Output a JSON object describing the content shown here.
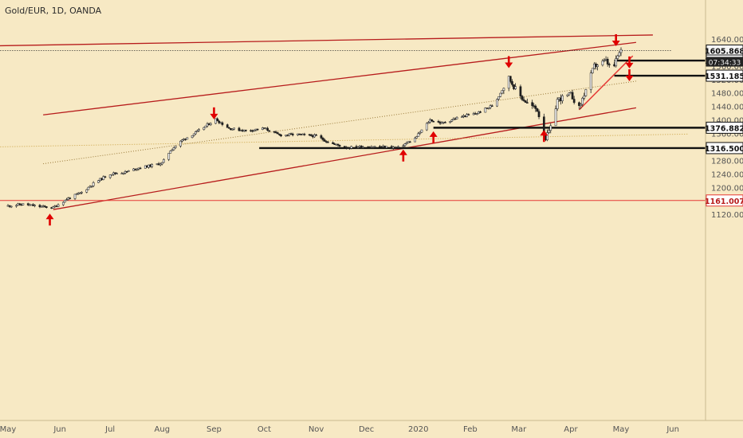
{
  "header": {
    "title": "Gold/EUR, 1D, OANDA"
  },
  "chart_data": {
    "type": "candlestick",
    "title": "Gold/EUR, 1D, OANDA",
    "symbol": "Gold/EUR",
    "interval": "1D",
    "source": "OANDA",
    "xlabels": [
      "May",
      "Jun",
      "Jul",
      "Aug",
      "Sep",
      "Oct",
      "Nov",
      "Dec",
      "2020",
      "Feb",
      "Mar",
      "Apr",
      "May",
      "Jun"
    ],
    "yticks": [
      1120,
      1160,
      1200,
      1240,
      1280,
      1320,
      1360,
      1400,
      1440,
      1480,
      1520,
      1560,
      1600,
      1640
    ],
    "ytick_labels": [
      "1120.000",
      "1160.000",
      "1200.000",
      "1240.000",
      "1280.000",
      "1320.000",
      "1360.000",
      "1400.000",
      "1440.000",
      "1480.000",
      "1520.000",
      "1560.000",
      "1600.000",
      "1640.000"
    ],
    "ylim": [
      1100,
      1660
    ],
    "current_price": "1605.868",
    "countdown": "07:34:33",
    "price_labels": [
      {
        "value": 1605.868,
        "label": "1605.868",
        "style": "current"
      },
      {
        "value": 1576.086,
        "label": "1576.086",
        "style": "level"
      },
      {
        "value": 1531.185,
        "label": "1531.185",
        "style": "level"
      },
      {
        "value": 1376.882,
        "label": "1376.882",
        "style": "level"
      },
      {
        "value": 1316.5,
        "label": "1316.500",
        "style": "level"
      },
      {
        "value": 1161.007,
        "label": "1161.007",
        "style": "red"
      }
    ],
    "path": [
      [
        "2019-05-01",
        1145
      ],
      [
        "2019-05-10",
        1150
      ],
      [
        "2019-05-20",
        1143
      ],
      [
        "2019-05-28",
        1140
      ],
      [
        "2019-06-05",
        1165
      ],
      [
        "2019-06-14",
        1185
      ],
      [
        "2019-06-22",
        1215
      ],
      [
        "2019-07-01",
        1240
      ],
      [
        "2019-07-10",
        1245
      ],
      [
        "2019-07-18",
        1258
      ],
      [
        "2019-07-26",
        1265
      ],
      [
        "2019-08-01",
        1272
      ],
      [
        "2019-08-06",
        1310
      ],
      [
        "2019-08-13",
        1340
      ],
      [
        "2019-08-22",
        1365
      ],
      [
        "2019-09-02",
        1402
      ],
      [
        "2019-09-10",
        1375
      ],
      [
        "2019-09-20",
        1368
      ],
      [
        "2019-10-01",
        1375
      ],
      [
        "2019-10-10",
        1355
      ],
      [
        "2019-10-20",
        1357
      ],
      [
        "2019-11-01",
        1352
      ],
      [
        "2019-11-10",
        1330
      ],
      [
        "2019-11-20",
        1318
      ],
      [
        "2019-12-01",
        1322
      ],
      [
        "2019-12-10",
        1320
      ],
      [
        "2019-12-20",
        1318
      ],
      [
        "2019-12-30",
        1345
      ],
      [
        "2020-01-08",
        1400
      ],
      [
        "2020-01-15",
        1390
      ],
      [
        "2020-01-25",
        1408
      ],
      [
        "2020-02-05",
        1420
      ],
      [
        "2020-02-15",
        1445
      ],
      [
        "2020-02-24",
        1525
      ],
      [
        "2020-03-01",
        1475
      ],
      [
        "2020-03-06",
        1450
      ],
      [
        "2020-03-12",
        1430
      ],
      [
        "2020-03-17",
        1345
      ],
      [
        "2020-03-20",
        1375
      ],
      [
        "2020-03-24",
        1460
      ],
      [
        "2020-04-01",
        1475
      ],
      [
        "2020-04-06",
        1435
      ],
      [
        "2020-04-10",
        1490
      ],
      [
        "2020-04-15",
        1560
      ],
      [
        "2020-04-22",
        1575
      ],
      [
        "2020-04-26",
        1545
      ],
      [
        "2020-04-29",
        1590
      ],
      [
        "2020-05-01",
        1605
      ]
    ],
    "annotations": {
      "channel_upper": [
        [
          "2019-05-22",
          1415
        ],
        [
          "2020-05-10",
          1630
        ]
      ],
      "channel_lower": [
        [
          "2019-05-28",
          1134
        ],
        [
          "2020-05-10",
          1436
        ]
      ],
      "channel_mid": [
        [
          "2019-05-22",
          1270
        ],
        [
          "2020-05-10",
          1515
        ]
      ],
      "top_trendline": [
        [
          "2019-04-25",
          1620
        ],
        [
          "2020-05-20",
          1652
        ]
      ],
      "lower_dotted": [
        [
          "2019-04-25",
          1320
        ],
        [
          "2020-06-10",
          1358
        ]
      ],
      "steep_trendline": [
        [
          "2020-04-06",
          1430
        ],
        [
          "2020-05-08",
          1590
        ]
      ],
      "level_lines": [
        {
          "value": 1605.868,
          "from": "2019-04-25",
          "to": "2020-05-31",
          "style": "dotted"
        },
        {
          "value": 1576.086,
          "from": "2020-04-27",
          "to": "2020-06-21",
          "style": "solid"
        },
        {
          "value": 1531.185,
          "from": "2020-04-27",
          "to": "2020-06-21",
          "style": "solid"
        },
        {
          "value": 1376.882,
          "from": "2020-01-10",
          "to": "2020-06-21",
          "style": "solid"
        },
        {
          "value": 1316.5,
          "from": "2019-09-28",
          "to": "2020-06-21",
          "style": "solid"
        },
        {
          "value": 1161.007,
          "from": "2019-04-25",
          "to": "2020-06-21",
          "style": "red"
        }
      ],
      "arrows_down": [
        [
          "2019-09-01",
          1416
        ],
        [
          "2020-02-24",
          1568
        ],
        [
          "2020-04-28",
          1633
        ],
        [
          "2020-05-06",
          1567
        ],
        [
          "2020-05-06",
          1529
        ]
      ],
      "arrows_up": [
        [
          "2019-05-26",
          1108
        ],
        [
          "2019-12-23",
          1298
        ],
        [
          "2020-01-10",
          1352
        ],
        [
          "2020-03-16",
          1356
        ]
      ]
    }
  },
  "colors": {
    "background": "#f7e9c4",
    "up": "#f2f2f2",
    "down": "#1e1e1e",
    "trend": "#b71c1c",
    "arrow": "#e00000"
  }
}
